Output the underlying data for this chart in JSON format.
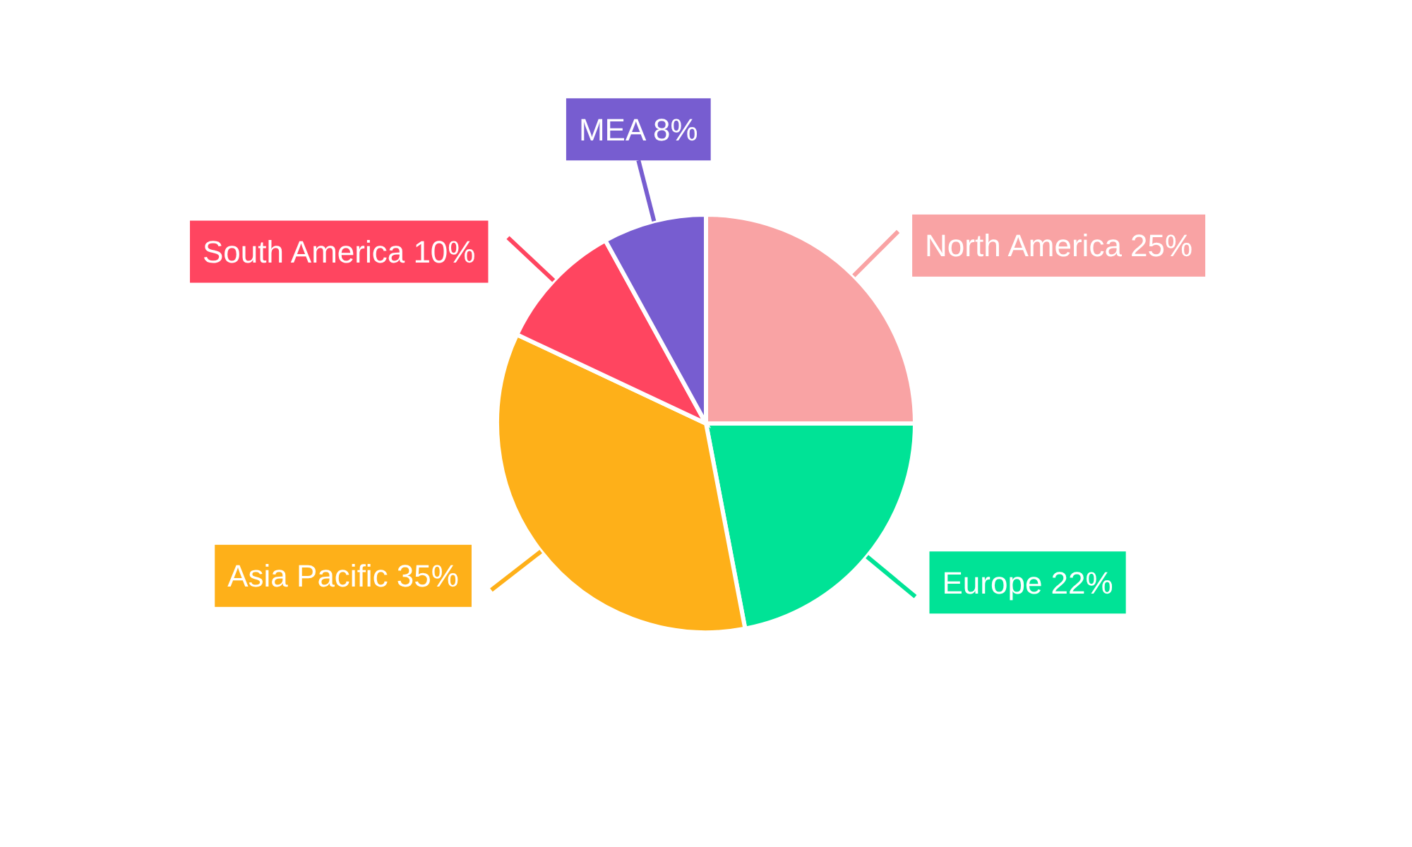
{
  "chart_data": {
    "type": "pie",
    "categories": [
      "North America",
      "Europe",
      "Asia Pacific",
      "South America",
      "MEA"
    ],
    "values": [
      25,
      22,
      35,
      10,
      8
    ],
    "value_labels": [
      "25%",
      "22%",
      "35%",
      "10%",
      "8%"
    ],
    "colors": [
      "#f9a3a4",
      "#00e396",
      "#feb019",
      "#ff4560",
      "#775dd0"
    ]
  }
}
